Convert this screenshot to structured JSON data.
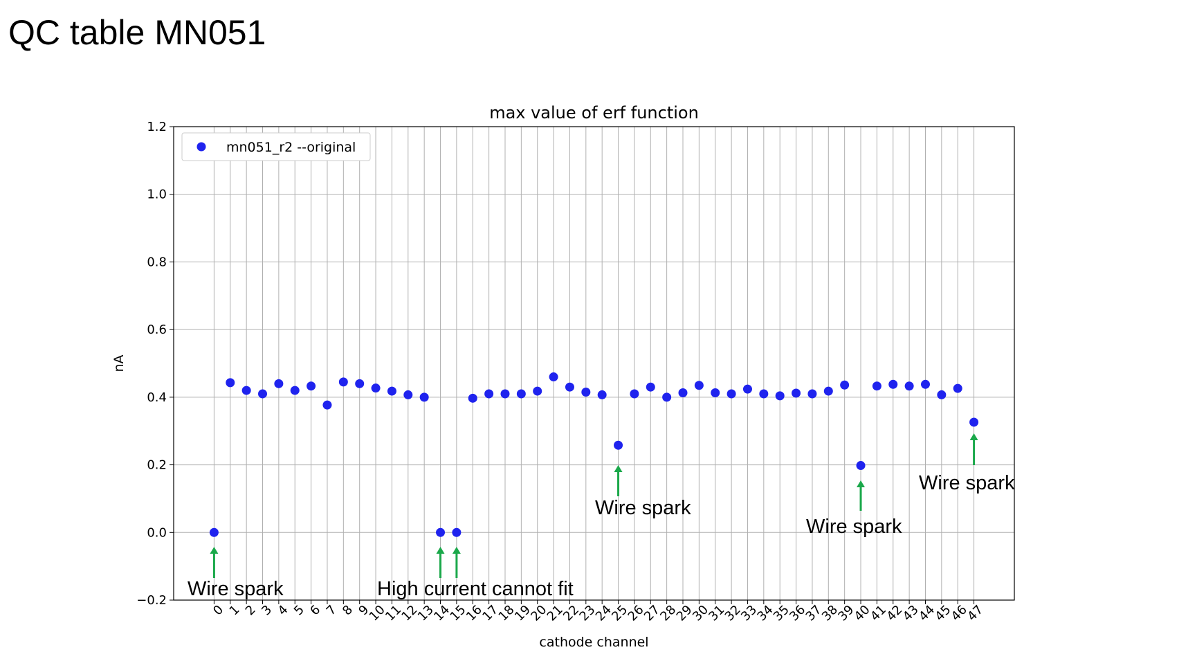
{
  "slide": {
    "title": "QC table MN051"
  },
  "colors": {
    "marker": "#1f23ee",
    "arrow": "#1aa84a",
    "grid": "#b0b0b0"
  },
  "chart_data": {
    "type": "scatter",
    "title": "max value of erf function",
    "xlabel": "cathode channel",
    "ylabel": "nA",
    "ylim": [
      -0.2,
      1.2
    ],
    "xlim": [
      -2.5,
      49.5
    ],
    "yticks": [
      "−0.2",
      "0.0",
      "0.2",
      "0.4",
      "0.6",
      "0.8",
      "1.0",
      "1.2"
    ],
    "ytick_values": [
      -0.2,
      0.0,
      0.2,
      0.4,
      0.6,
      0.8,
      1.0,
      1.2
    ],
    "xticks": [
      "0",
      "1",
      "2",
      "3",
      "4",
      "5",
      "6",
      "7",
      "8",
      "9",
      "10",
      "11",
      "12",
      "13",
      "14",
      "15",
      "16",
      "17",
      "18",
      "19",
      "20",
      "21",
      "22",
      "23",
      "24",
      "25",
      "26",
      "27",
      "28",
      "29",
      "30",
      "31",
      "32",
      "33",
      "34",
      "35",
      "36",
      "37",
      "38",
      "39",
      "40",
      "41",
      "42",
      "43",
      "44",
      "45",
      "46",
      "47"
    ],
    "grid": true,
    "legend_position": "top-left",
    "series": [
      {
        "name": "mn051_r2 --original",
        "x": [
          0,
          1,
          2,
          3,
          4,
          5,
          6,
          7,
          8,
          9,
          10,
          11,
          12,
          13,
          14,
          15,
          16,
          17,
          18,
          19,
          20,
          21,
          22,
          23,
          24,
          25,
          26,
          27,
          28,
          29,
          30,
          31,
          32,
          33,
          34,
          35,
          36,
          37,
          38,
          39,
          40,
          41,
          42,
          43,
          44,
          45,
          46,
          47
        ],
        "y": [
          0.0,
          0.443,
          0.42,
          0.41,
          0.44,
          0.42,
          0.433,
          0.377,
          0.445,
          0.44,
          0.427,
          0.418,
          0.407,
          0.4,
          0.0,
          0.0,
          0.397,
          0.41,
          0.41,
          0.41,
          0.418,
          0.46,
          0.43,
          0.415,
          0.407,
          0.258,
          0.41,
          0.43,
          0.4,
          0.413,
          0.435,
          0.413,
          0.41,
          0.424,
          0.41,
          0.404,
          0.412,
          0.41,
          0.418,
          0.436,
          0.198,
          0.433,
          0.438,
          0.433,
          0.438,
          0.407,
          0.426,
          0.326
        ]
      }
    ],
    "annotations": [
      {
        "text": "Wire spark",
        "arrows_to_channels": [
          0
        ]
      },
      {
        "text": "High current cannot fit",
        "arrows_to_channels": [
          14,
          15
        ]
      },
      {
        "text": "Wire spark",
        "arrows_to_channels": [
          25
        ]
      },
      {
        "text": "Wire spark",
        "arrows_to_channels": [
          40
        ]
      },
      {
        "text": "Wire spark",
        "arrows_to_channels": [
          47
        ]
      }
    ]
  }
}
